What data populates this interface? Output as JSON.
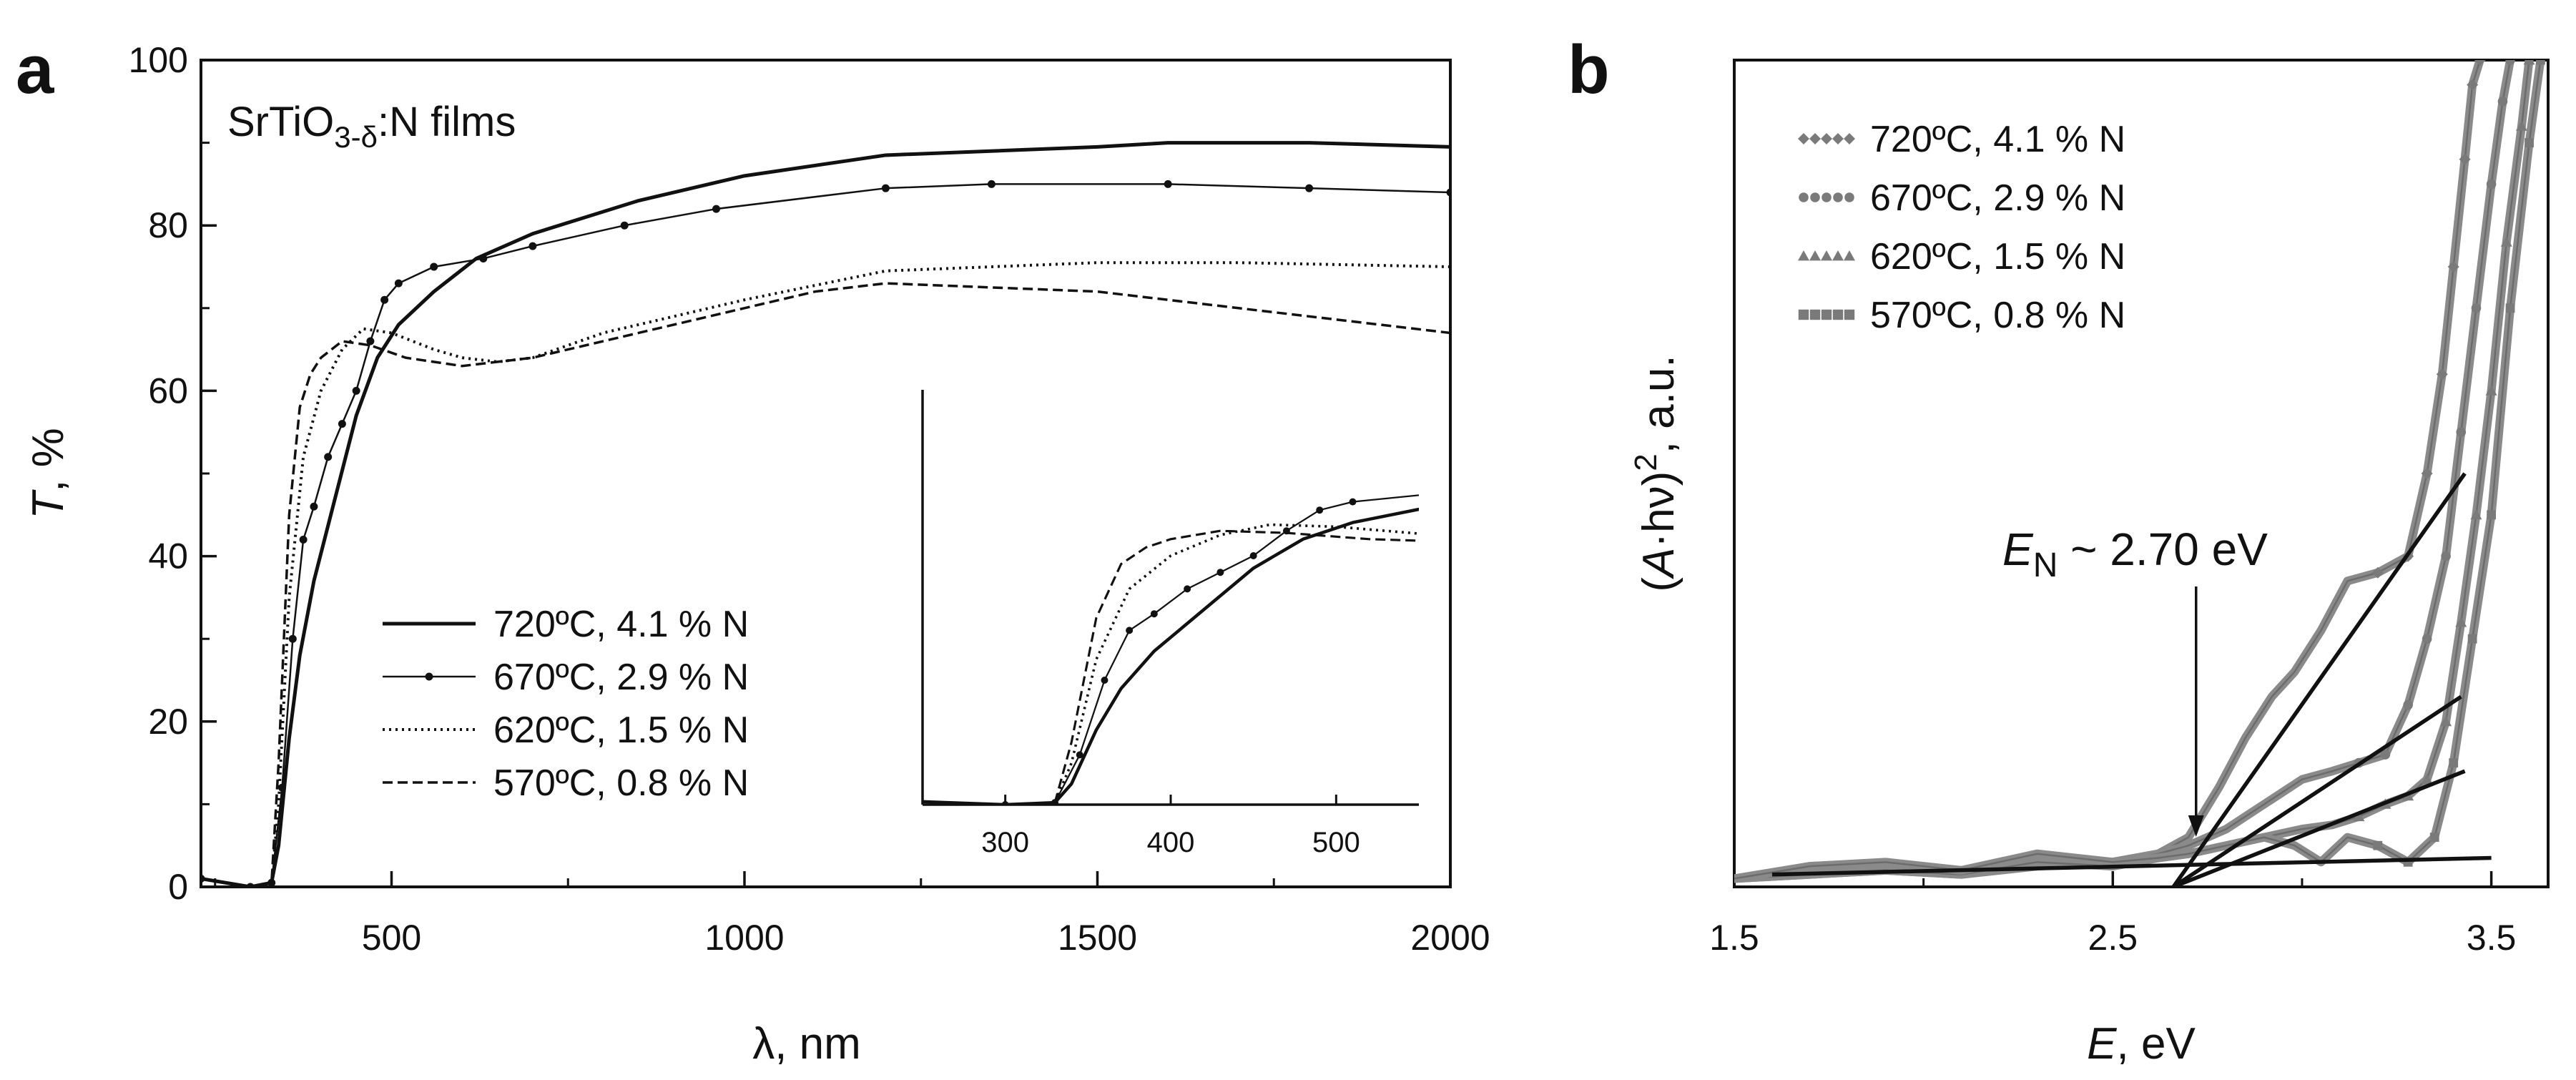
{
  "chart_data": [
    {
      "panel": "a",
      "type": "line",
      "title": "SrTiO3-δ:N films",
      "title_parts": {
        "pre": "SrTiO",
        "sub": "3-δ",
        "post": ":N films"
      },
      "xlabel": "λ, nm",
      "ylabel": "T, %",
      "ylabel_parts": {
        "italic": "T",
        "rest": ", %"
      },
      "xlim": [
        230,
        2000
      ],
      "ylim": [
        0,
        100
      ],
      "xticks": [
        500,
        1000,
        1500,
        2000
      ],
      "yticks": [
        0,
        20,
        40,
        60,
        80,
        100
      ],
      "legend_position": "center-left",
      "series": [
        {
          "name": "720ºC, 4.1 % N",
          "style": "solid-thick",
          "x": [
            230,
            300,
            330,
            340,
            355,
            370,
            390,
            420,
            450,
            480,
            510,
            560,
            620,
            700,
            850,
            1000,
            1200,
            1500,
            1600,
            1800,
            2000
          ],
          "y": [
            1,
            0,
            0.5,
            5,
            18,
            28,
            37,
            47,
            57,
            64,
            68,
            72,
            76,
            79,
            83,
            86,
            88.5,
            89.5,
            90,
            90,
            89.5
          ]
        },
        {
          "name": "670ºC, 2.9 % N",
          "style": "solid-markers",
          "x": [
            230,
            300,
            330,
            345,
            360,
            375,
            390,
            410,
            430,
            450,
            470,
            490,
            510,
            560,
            630,
            700,
            830,
            960,
            1200,
            1350,
            1600,
            1800,
            2000
          ],
          "y": [
            1,
            0,
            0.5,
            12,
            30,
            42,
            46,
            52,
            56,
            60,
            66,
            71,
            73,
            75,
            76,
            77.5,
            80,
            82,
            84.5,
            85,
            85,
            84.5,
            84
          ]
        },
        {
          "name": "620ºC, 1.5 % N",
          "style": "dotted",
          "x": [
            230,
            300,
            330,
            340,
            355,
            375,
            400,
            430,
            460,
            500,
            530,
            560,
            600,
            650,
            700,
            800,
            1000,
            1200,
            1500,
            1700,
            2000
          ],
          "y": [
            1,
            0,
            0.5,
            10,
            35,
            52,
            60,
            65,
            67.5,
            67,
            66,
            65,
            64,
            63.5,
            64,
            67,
            71,
            74.5,
            75.5,
            75.5,
            75
          ]
        },
        {
          "name": "570ºC, 0.8 % N",
          "style": "dashed",
          "x": [
            230,
            300,
            330,
            340,
            355,
            370,
            385,
            400,
            430,
            470,
            520,
            600,
            700,
            850,
            1000,
            1100,
            1200,
            1500,
            1700,
            1850,
            2000
          ],
          "y": [
            1,
            0,
            0.5,
            15,
            45,
            58,
            62,
            64,
            66,
            65.5,
            64,
            63,
            64,
            67,
            70,
            72,
            73,
            72,
            70,
            68.5,
            67
          ]
        }
      ],
      "inset": {
        "xlim": [
          250,
          550
        ],
        "xticks": [
          300,
          400,
          500
        ],
        "ylim": [
          0,
          100
        ],
        "x_range_shown": [
          250,
          550
        ]
      }
    },
    {
      "panel": "b",
      "type": "scatter",
      "xlabel": "E, eV",
      "xlabel_parts": {
        "italic": "E",
        "rest": ", eV"
      },
      "ylabel": "(A·hν)², a.u.",
      "ylabel_parts": {
        "open": "(",
        "italic": "A",
        "rest": "·hν)",
        "sup": "2",
        "tail": ", a.u."
      },
      "xlim": [
        1.5,
        3.65
      ],
      "ylim": [
        0,
        100
      ],
      "xticks": [
        1.5,
        2.5,
        3.5
      ],
      "legend_position": "top-left",
      "annotation": {
        "text": "EN ~ 2.70 eV",
        "italic": "E",
        "sub": "N",
        "rest": " ~ 2.70 eV",
        "arrow_x": 2.72
      },
      "series": [
        {
          "name": "720ºC, 4.1 % N",
          "marker": "diamond",
          "x": [
            1.5,
            1.7,
            1.9,
            2.1,
            2.3,
            2.5,
            2.62,
            2.7,
            2.78,
            2.85,
            2.92,
            2.98,
            3.05,
            3.12,
            3.2,
            3.28,
            3.33,
            3.37,
            3.4,
            3.43,
            3.45,
            3.47
          ],
          "y": [
            1,
            1.5,
            2,
            1.5,
            2.5,
            3,
            4,
            6,
            12,
            18,
            23,
            26,
            31,
            37,
            38,
            40,
            50,
            62,
            75,
            88,
            97,
            100
          ]
        },
        {
          "name": "670ºC, 2.9 % N",
          "marker": "circle",
          "x": [
            1.5,
            1.7,
            1.9,
            2.1,
            2.3,
            2.5,
            2.62,
            2.7,
            2.8,
            2.9,
            3.0,
            3.08,
            3.15,
            3.22,
            3.28,
            3.33,
            3.38,
            3.42,
            3.46,
            3.5,
            3.53,
            3.55
          ],
          "y": [
            1,
            2,
            2.5,
            2,
            3.5,
            3,
            4,
            5,
            7,
            10,
            13,
            14,
            15,
            16,
            22,
            30,
            40,
            55,
            70,
            85,
            95,
            100
          ]
        },
        {
          "name": "620ºC, 1.5 % N",
          "marker": "triangle",
          "x": [
            1.5,
            1.7,
            1.9,
            2.1,
            2.3,
            2.5,
            2.62,
            2.7,
            2.8,
            2.9,
            3.0,
            3.08,
            3.15,
            3.22,
            3.28,
            3.33,
            3.38,
            3.42,
            3.46,
            3.5,
            3.54,
            3.58,
            3.6
          ],
          "y": [
            1,
            1.5,
            2,
            1.5,
            3,
            2.5,
            3.5,
            4,
            5,
            6,
            7,
            7.5,
            8.5,
            10,
            11,
            13,
            20,
            32,
            45,
            60,
            78,
            92,
            100
          ]
        },
        {
          "name": "570ºC, 0.8 % N",
          "marker": "square",
          "x": [
            1.5,
            1.7,
            1.9,
            2.1,
            2.3,
            2.5,
            2.62,
            2.7,
            2.8,
            2.9,
            2.98,
            3.05,
            3.12,
            3.2,
            3.28,
            3.35,
            3.4,
            3.45,
            3.5,
            3.55,
            3.6,
            3.63
          ],
          "y": [
            1,
            2.5,
            3,
            2,
            4,
            3,
            3.5,
            4,
            5,
            6,
            5,
            3,
            6,
            5,
            3,
            6,
            15,
            30,
            45,
            70,
            90,
            100
          ]
        }
      ],
      "fit_lines": [
        {
          "x": [
            2.66,
            3.43
          ],
          "y": [
            0,
            50
          ]
        },
        {
          "x": [
            2.66,
            3.42
          ],
          "y": [
            0,
            23
          ]
        },
        {
          "x": [
            2.66,
            3.43
          ],
          "y": [
            0,
            14
          ]
        },
        {
          "x": [
            1.6,
            3.5
          ],
          "y": [
            1.5,
            3.5
          ]
        }
      ]
    }
  ]
}
